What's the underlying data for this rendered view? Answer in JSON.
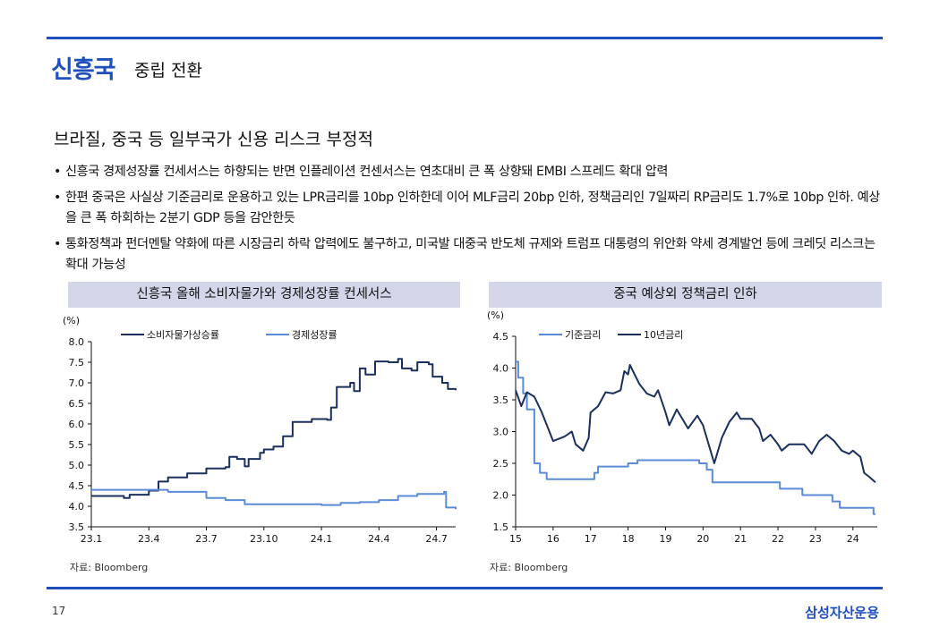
{
  "header": {
    "title": "신흥국",
    "subtitle": "중립 전환"
  },
  "subheading": "브라질, 중국 등 일부국가 신용 리스크 부정적",
  "bullets": [
    "신흥국 경제성장률 컨세서스는 하향되는 반면 인플레이션 컨센서스는 연초대비 큰 폭 상향돼 EMBI 스프레드 확대 압력",
    "한편 중국은 사실상 기준금리로 운용하고 있는 LPR금리를 10bp 인하한데 이어 MLF금리 20bp 인하, 정책금리인 7일짜리 RP금리도 1.7%로 10bp 인하. 예상을 큰 폭 하회하는 2분기 GDP 등을 감안한듯",
    "통화정책과 펀더멘탈 약화에 따른 시장금리 하락 압력에도 불구하고, 미국발 대중국 반도체 규제와 트럼프 대통령의 위안화 약세 경계발언 등에 크레딧 리스크는 확대 가능성"
  ],
  "footer": {
    "page": "17",
    "brand": "삼성자산운용"
  },
  "colors": {
    "accent": "#1f4fbd",
    "dark_series": "#1b2f5e",
    "light_series": "#5b8bd6",
    "title_bar": "#d3d6e9"
  },
  "chart_data": [
    {
      "type": "line",
      "title": "신흥국 올해 소비자물가와 경제성장률 컨세서스",
      "ylabel": "(%)",
      "source": "자료: Bloomberg",
      "x_unit": "months since 23.1",
      "xlim": [
        0,
        19
      ],
      "ylim": [
        3.5,
        8.0
      ],
      "yticks": [
        "3.5",
        "4.0",
        "4.5",
        "5.0",
        "5.5",
        "6.0",
        "6.5",
        "7.0",
        "7.5",
        "8.0"
      ],
      "xticks": [
        {
          "v": 0,
          "label": "23.1"
        },
        {
          "v": 3,
          "label": "23.4"
        },
        {
          "v": 6,
          "label": "23.7"
        },
        {
          "v": 9,
          "label": "23.10"
        },
        {
          "v": 12,
          "label": "24.1"
        },
        {
          "v": 15,
          "label": "24.4"
        },
        {
          "v": 18,
          "label": "24.7"
        }
      ],
      "series": [
        {
          "name": "소비자물가상승률",
          "color": "#1b2f5e",
          "step": true,
          "points": [
            [
              0,
              4.25
            ],
            [
              1.5,
              4.25
            ],
            [
              1.7,
              4.2
            ],
            [
              2,
              4.28
            ],
            [
              3,
              4.38
            ],
            [
              3.5,
              4.6
            ],
            [
              4,
              4.7
            ],
            [
              5,
              4.8
            ],
            [
              6,
              4.92
            ],
            [
              7,
              4.95
            ],
            [
              7.2,
              5.2
            ],
            [
              7.6,
              5.15
            ],
            [
              8,
              4.97
            ],
            [
              8.2,
              5.15
            ],
            [
              8.8,
              5.3
            ],
            [
              9,
              5.38
            ],
            [
              9.5,
              5.45
            ],
            [
              10,
              5.7
            ],
            [
              10.5,
              6.05
            ],
            [
              11,
              6.05
            ],
            [
              11.5,
              6.12
            ],
            [
              12.3,
              6.1
            ],
            [
              12.5,
              6.4
            ],
            [
              12.8,
              6.9
            ],
            [
              13.5,
              7.0
            ],
            [
              13.7,
              6.8
            ],
            [
              14,
              7.35
            ],
            [
              14.3,
              7.2
            ],
            [
              14.8,
              7.52
            ],
            [
              15.5,
              7.5
            ],
            [
              16,
              7.58
            ],
            [
              16.2,
              7.35
            ],
            [
              16.7,
              7.3
            ],
            [
              17,
              7.5
            ],
            [
              17.6,
              7.45
            ],
            [
              17.8,
              7.15
            ],
            [
              18.3,
              7.0
            ],
            [
              18.6,
              6.85
            ],
            [
              19,
              6.82
            ]
          ]
        },
        {
          "name": "경제성장률",
          "color": "#5b8bd6",
          "step": true,
          "points": [
            [
              0,
              4.4
            ],
            [
              3,
              4.4
            ],
            [
              4,
              4.35
            ],
            [
              5,
              4.35
            ],
            [
              6,
              4.2
            ],
            [
              7,
              4.15
            ],
            [
              8,
              4.05
            ],
            [
              9,
              4.05
            ],
            [
              12,
              4.03
            ],
            [
              13,
              4.08
            ],
            [
              14,
              4.1
            ],
            [
              15,
              4.15
            ],
            [
              16,
              4.25
            ],
            [
              17,
              4.3
            ],
            [
              18.4,
              4.35
            ],
            [
              18.5,
              3.97
            ],
            [
              19,
              3.93
            ]
          ]
        }
      ]
    },
    {
      "type": "line",
      "title": "중국 예상외 정책금리 인하",
      "ylabel": "(%)",
      "source": "자료: Bloomberg",
      "x_unit": "year (20xx)",
      "xlim": [
        15,
        24.65
      ],
      "ylim": [
        1.5,
        4.5
      ],
      "yticks": [
        "1.5",
        "2.0",
        "2.5",
        "3.0",
        "3.5",
        "4.0",
        "4.5"
      ],
      "xticks": [
        {
          "v": 15,
          "label": "15"
        },
        {
          "v": 16,
          "label": "16"
        },
        {
          "v": 17,
          "label": "17"
        },
        {
          "v": 18,
          "label": "18"
        },
        {
          "v": 19,
          "label": "19"
        },
        {
          "v": 20,
          "label": "20"
        },
        {
          "v": 21,
          "label": "21"
        },
        {
          "v": 22,
          "label": "22"
        },
        {
          "v": 23,
          "label": "23"
        },
        {
          "v": 24,
          "label": "24"
        }
      ],
      "series": [
        {
          "name": "기준금리",
          "color": "#5b8bd6",
          "step": true,
          "points": [
            [
              15,
              4.1
            ],
            [
              15.07,
              3.85
            ],
            [
              15.2,
              3.6
            ],
            [
              15.3,
              3.35
            ],
            [
              15.5,
              2.5
            ],
            [
              15.65,
              2.35
            ],
            [
              15.83,
              2.25
            ],
            [
              17.1,
              2.35
            ],
            [
              17.2,
              2.45
            ],
            [
              18.0,
              2.5
            ],
            [
              18.25,
              2.55
            ],
            [
              19.9,
              2.5
            ],
            [
              20.1,
              2.4
            ],
            [
              20.25,
              2.2
            ],
            [
              22.05,
              2.1
            ],
            [
              22.65,
              2.0
            ],
            [
              23.45,
              1.9
            ],
            [
              23.65,
              1.8
            ],
            [
              24.55,
              1.7
            ],
            [
              24.6,
              1.7
            ]
          ]
        },
        {
          "name": "10년금리",
          "color": "#1b2f5e",
          "step": false,
          "points": [
            [
              15,
              3.65
            ],
            [
              15.15,
              3.4
            ],
            [
              15.3,
              3.62
            ],
            [
              15.5,
              3.55
            ],
            [
              15.7,
              3.3
            ],
            [
              15.9,
              3.0
            ],
            [
              16.0,
              2.85
            ],
            [
              16.3,
              2.92
            ],
            [
              16.5,
              3.0
            ],
            [
              16.6,
              2.8
            ],
            [
              16.8,
              2.7
            ],
            [
              16.95,
              2.9
            ],
            [
              17.0,
              3.3
            ],
            [
              17.2,
              3.4
            ],
            [
              17.4,
              3.62
            ],
            [
              17.6,
              3.6
            ],
            [
              17.8,
              3.65
            ],
            [
              17.9,
              3.95
            ],
            [
              18.0,
              3.9
            ],
            [
              18.05,
              4.05
            ],
            [
              18.3,
              3.75
            ],
            [
              18.5,
              3.6
            ],
            [
              18.7,
              3.55
            ],
            [
              18.8,
              3.65
            ],
            [
              19.0,
              3.3
            ],
            [
              19.1,
              3.1
            ],
            [
              19.3,
              3.35
            ],
            [
              19.6,
              3.05
            ],
            [
              19.85,
              3.25
            ],
            [
              20.0,
              3.1
            ],
            [
              20.15,
              2.8
            ],
            [
              20.3,
              2.5
            ],
            [
              20.5,
              2.9
            ],
            [
              20.7,
              3.15
            ],
            [
              20.9,
              3.3
            ],
            [
              21.0,
              3.2
            ],
            [
              21.3,
              3.2
            ],
            [
              21.5,
              3.05
            ],
            [
              21.6,
              2.85
            ],
            [
              21.8,
              2.95
            ],
            [
              22.0,
              2.8
            ],
            [
              22.1,
              2.7
            ],
            [
              22.3,
              2.8
            ],
            [
              22.7,
              2.8
            ],
            [
              22.9,
              2.65
            ],
            [
              23.1,
              2.85
            ],
            [
              23.3,
              2.95
            ],
            [
              23.5,
              2.85
            ],
            [
              23.7,
              2.7
            ],
            [
              23.9,
              2.65
            ],
            [
              24.0,
              2.7
            ],
            [
              24.2,
              2.6
            ],
            [
              24.3,
              2.35
            ],
            [
              24.45,
              2.28
            ],
            [
              24.6,
              2.2
            ]
          ]
        }
      ]
    }
  ]
}
